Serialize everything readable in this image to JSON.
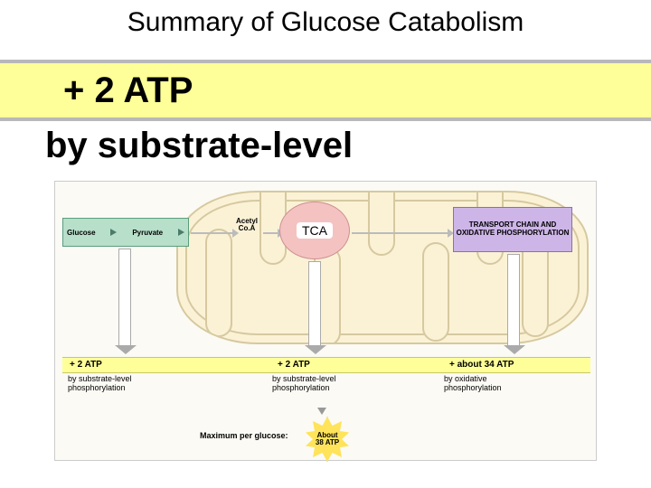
{
  "title": "Summary of Glucose Catabolism",
  "callout": {
    "main": "+ 2 ATP",
    "sub": "by substrate-level"
  },
  "diagram": {
    "glycolysis": {
      "glucose": "Glucose",
      "pyruvate": "Pyruvate"
    },
    "acetyl": "Acetyl\nCo.A",
    "tca": "TCA",
    "etc": "TRANSPORT CHAIN AND OXIDATIVE PHOSPHORYLATION",
    "atp_band": {
      "a1": "+ 2 ATP",
      "a2": "+ 2 ATP",
      "a3": "+ about 34 ATP"
    },
    "under": {
      "u1": "by substrate-level\nphosphorylation",
      "u2": "by substrate-level\nphosphorylation",
      "u3": "by oxidative\nphosphorylation"
    },
    "max_label": "Maximum per glucose:",
    "star": "About\n38 ATP"
  },
  "colors": {
    "band": "#ffff99",
    "glyco": "#b7dfc9",
    "tca": "#f5c2c2",
    "etc": "#cdb5e8",
    "mito": "#fbf2d6",
    "star": "#ffe35a",
    "bg": "#fbfaf4"
  }
}
